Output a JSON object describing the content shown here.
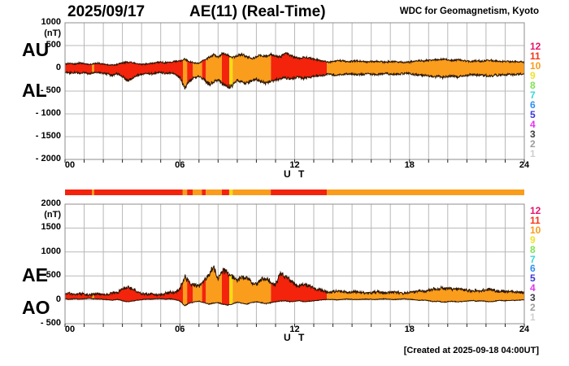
{
  "chart_data": {
    "type": "area",
    "date": "2025/09/17",
    "title": "AE(11) (Real-Time)",
    "credit": "WDC for Geomagnetism, Kyoto",
    "created_note": "[Created at 2025-09-18 04:00UT]",
    "xlabel": "U T",
    "x_range_hours": [
      0,
      24
    ],
    "x_ticks": {
      "hours": [
        0,
        6,
        12,
        18,
        24
      ],
      "labels": [
        "00",
        "06",
        "12",
        "18",
        "24"
      ]
    },
    "sample_interval_hours": 0.25,
    "panels": [
      {
        "series_labels": [
          "AU",
          "AL"
        ],
        "unit": "(nT)",
        "ylim": [
          -2000,
          1000
        ],
        "y_ticks": [
          1000,
          500,
          0,
          -500,
          -1000,
          -1500,
          -2000
        ]
      },
      {
        "series_labels": [
          "AE",
          "AO"
        ],
        "unit": "(nT)",
        "ylim": [
          -500,
          2000
        ],
        "y_ticks": [
          2000,
          1500,
          1000,
          500,
          0,
          -500
        ]
      }
    ],
    "series": {
      "au": [
        95,
        110,
        90,
        120,
        105,
        85,
        100,
        115,
        95,
        80,
        70,
        90,
        115,
        135,
        120,
        100,
        85,
        95,
        110,
        125,
        140,
        120,
        135,
        150,
        165,
        200,
        145,
        120,
        115,
        175,
        230,
        290,
        250,
        330,
        300,
        230,
        270,
        300,
        255,
        215,
        255,
        285,
        265,
        305,
        275,
        250,
        340,
        290,
        235,
        215,
        255,
        225,
        195,
        175,
        155,
        140,
        150,
        170,
        160,
        145,
        155,
        165,
        150,
        140,
        150,
        160,
        145,
        135,
        145,
        150,
        140,
        130,
        140,
        155,
        170,
        160,
        175,
        190,
        180,
        200,
        185,
        170,
        190,
        175,
        160,
        150,
        165,
        155,
        170,
        180,
        160,
        150,
        155,
        145,
        150,
        140,
        135
      ],
      "al": [
        -85,
        -105,
        -90,
        -110,
        -95,
        -120,
        -100,
        -90,
        -110,
        -130,
        -155,
        -120,
        -180,
        -255,
        -220,
        -160,
        -130,
        -110,
        -120,
        -100,
        -90,
        -110,
        -100,
        -125,
        -200,
        -430,
        -280,
        -205,
        -180,
        -225,
        -350,
        -305,
        -260,
        -345,
        -400,
        -380,
        -260,
        -305,
        -340,
        -280,
        -250,
        -300,
        -330,
        -280,
        -250,
        -220,
        -205,
        -230,
        -210,
        -190,
        -220,
        -200,
        -180,
        -160,
        -150,
        -130,
        -140,
        -150,
        -135,
        -125,
        -130,
        -140,
        -130,
        -120,
        -130,
        -140,
        -125,
        -115,
        -125,
        -135,
        -120,
        -110,
        -120,
        -135,
        -150,
        -140,
        -160,
        -185,
        -170,
        -195,
        -180,
        -160,
        -185,
        -170,
        -150,
        -140,
        -155,
        -145,
        -160,
        -175,
        -150,
        -140,
        -145,
        -135,
        -140,
        -130,
        -125
      ],
      "ae": [
        120,
        140,
        110,
        135,
        120,
        100,
        115,
        125,
        110,
        120,
        145,
        160,
        225,
        265,
        230,
        170,
        130,
        115,
        125,
        110,
        105,
        130,
        160,
        145,
        235,
        490,
        360,
        305,
        285,
        385,
        490,
        690,
        430,
        640,
        560,
        480,
        400,
        470,
        450,
        350,
        330,
        420,
        460,
        380,
        300,
        550,
        480,
        420,
        330,
        285,
        330,
        290,
        240,
        205,
        185,
        155,
        165,
        185,
        170,
        150,
        160,
        175,
        160,
        145,
        155,
        170,
        150,
        140,
        150,
        160,
        145,
        135,
        150,
        170,
        190,
        175,
        200,
        235,
        215,
        250,
        235,
        210,
        240,
        220,
        195,
        180,
        200,
        185,
        205,
        220,
        190,
        175,
        180,
        165,
        170,
        155,
        150
      ],
      "ao": [
        20,
        10,
        25,
        15,
        20,
        30,
        20,
        15,
        10,
        0,
        -10,
        10,
        -20,
        -40,
        -30,
        -10,
        5,
        15,
        10,
        20,
        25,
        10,
        20,
        5,
        -25,
        -120,
        -70,
        -45,
        -30,
        -60,
        -90,
        -70,
        -60,
        -95,
        -110,
        -90,
        -50,
        -70,
        -90,
        -60,
        -40,
        -60,
        -80,
        -60,
        -40,
        -30,
        -20,
        -40,
        -30,
        -20,
        -40,
        -30,
        -20,
        -10,
        0,
        10,
        5,
        0,
        10,
        15,
        10,
        5,
        10,
        15,
        10,
        5,
        15,
        20,
        10,
        5,
        15,
        20,
        10,
        0,
        -10,
        -5,
        -20,
        -40,
        -30,
        -50,
        -40,
        -30,
        -45,
        -35,
        -25,
        -15,
        -30,
        -20,
        -35,
        -45,
        -25,
        -15,
        -20,
        -10,
        -15,
        -5,
        0
      ]
    },
    "color_segments": [
      [
        0.0,
        1.4,
        "red"
      ],
      [
        1.4,
        1.52,
        "orange"
      ],
      [
        1.52,
        6.15,
        "red"
      ],
      [
        6.15,
        6.38,
        "orange"
      ],
      [
        6.38,
        6.67,
        "red"
      ],
      [
        6.67,
        7.15,
        "orange"
      ],
      [
        7.15,
        7.36,
        "red"
      ],
      [
        7.36,
        8.2,
        "orange"
      ],
      [
        8.2,
        8.58,
        "red"
      ],
      [
        8.58,
        8.76,
        "yellow"
      ],
      [
        8.76,
        10.75,
        "orange"
      ],
      [
        10.75,
        13.68,
        "red"
      ],
      [
        13.68,
        24.0,
        "orange"
      ]
    ],
    "activity_scale": {
      "labels": [
        "12",
        "11",
        "10",
        "9",
        "8",
        "7",
        "6",
        "5",
        "4",
        "3",
        "2",
        "1"
      ],
      "colors": [
        "#E8136E",
        "#F53418",
        "#F89C1B",
        "#EEE22B",
        "#7EE353",
        "#38D9D4",
        "#2E8FF0",
        "#3937D6",
        "#E036EE",
        "#3C3C3C",
        "#9D9D9D",
        "#CFCFCF"
      ]
    },
    "fill_colors": {
      "red": "#F3230C",
      "orange": "#FA9D1C",
      "yellow": "#F3DC13"
    },
    "style_colors": {
      "outline": "#2B1400",
      "grid": "#B8B8B8",
      "frame": "#8C8C8C",
      "tick": "#222222"
    },
    "noise_nt": {
      "au": 20,
      "al": 26,
      "ae": 30,
      "ao": 12
    }
  }
}
